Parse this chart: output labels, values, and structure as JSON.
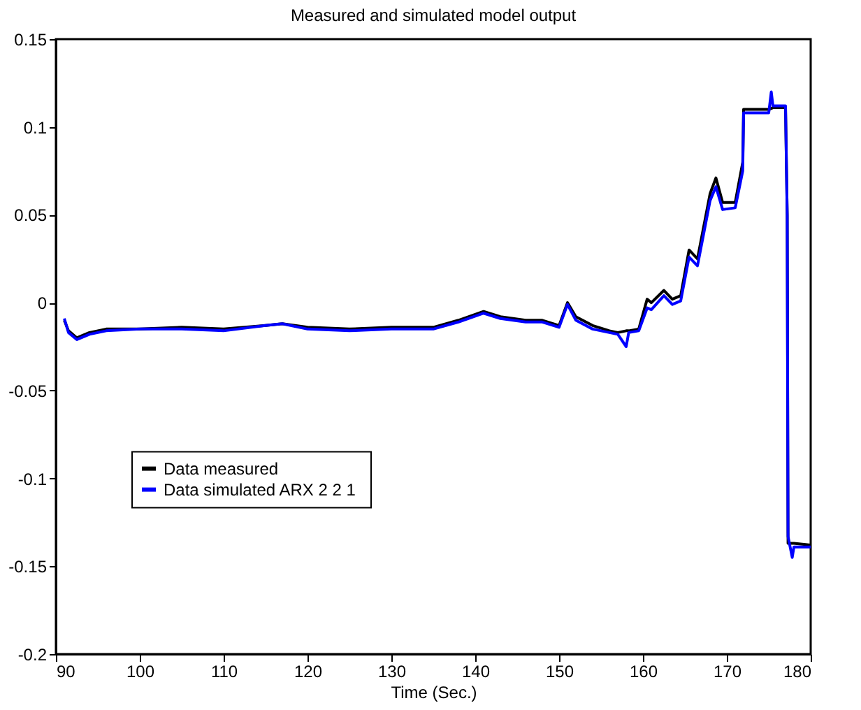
{
  "chart_data": {
    "type": "line",
    "title": "Measured and simulated model output",
    "xlabel": "Time (Sec.)",
    "xlim": [
      90,
      180
    ],
    "xticks": [
      90,
      100,
      110,
      120,
      130,
      140,
      150,
      160,
      170,
      180
    ],
    "ylim": [
      -0.2,
      0.15
    ],
    "yticks": [
      -0.2,
      -0.15,
      -0.1,
      -0.05,
      0,
      0.05,
      0.1,
      0.15
    ],
    "grid": false,
    "legend": "bottom left",
    "line_style": "solid",
    "marker": "none",
    "series": [
      {
        "name": "Data measured",
        "color": "#000000",
        "x": [
          91,
          91.5,
          92.5,
          94,
          96,
          100,
          105,
          110,
          115,
          117,
          120,
          125,
          130,
          135,
          138,
          141,
          143,
          146,
          148,
          150,
          151,
          152,
          154,
          156,
          157,
          158,
          158.3,
          159.5,
          160.5,
          161,
          162.5,
          163.5,
          164.5,
          165.5,
          166.5,
          168,
          168.7,
          169.5,
          171,
          171.9,
          172,
          175,
          175.5,
          177,
          177.2,
          177.3,
          178,
          180
        ],
        "values": [
          -0.01,
          -0.016,
          -0.02,
          -0.017,
          -0.015,
          -0.015,
          -0.014,
          -0.015,
          -0.013,
          -0.012,
          -0.014,
          -0.015,
          -0.014,
          -0.014,
          -0.01,
          -0.005,
          -0.008,
          -0.01,
          -0.01,
          -0.013,
          0,
          -0.008,
          -0.013,
          -0.016,
          -0.017,
          -0.016,
          -0.016,
          -0.015,
          0.002,
          0,
          0.007,
          0.002,
          0.004,
          0.03,
          0.025,
          0.062,
          0.071,
          0.057,
          0.057,
          0.08,
          0.11,
          0.11,
          0.111,
          0.111,
          0.05,
          -0.137,
          -0.137,
          -0.138
        ]
      },
      {
        "name": "Data simulated  ARX 2 2 1",
        "color": "#0000ff",
        "x": [
          91,
          91.5,
          92.5,
          94,
          96,
          100,
          105,
          110,
          115,
          117,
          120,
          125,
          130,
          135,
          138,
          141,
          143,
          146,
          148,
          150,
          151,
          152,
          154,
          156,
          157,
          158,
          158.3,
          159.5,
          160.5,
          161,
          162.5,
          163.5,
          164.5,
          165.5,
          166.5,
          168,
          168.7,
          169.5,
          171,
          171.9,
          172,
          175,
          175.3,
          175.5,
          177,
          177.2,
          177.3,
          177.8,
          178,
          180
        ],
        "values": [
          -0.009,
          -0.017,
          -0.021,
          -0.018,
          -0.016,
          -0.015,
          -0.015,
          -0.016,
          -0.013,
          -0.012,
          -0.015,
          -0.016,
          -0.015,
          -0.015,
          -0.011,
          -0.006,
          -0.009,
          -0.011,
          -0.011,
          -0.014,
          -0.001,
          -0.01,
          -0.015,
          -0.017,
          -0.018,
          -0.025,
          -0.017,
          -0.016,
          -0.003,
          -0.004,
          0.004,
          -0.001,
          0.001,
          0.026,
          0.021,
          0.058,
          0.066,
          0.053,
          0.054,
          0.075,
          0.108,
          0.108,
          0.12,
          0.112,
          0.112,
          0.05,
          -0.133,
          -0.145,
          -0.139,
          -0.139
        ]
      }
    ]
  }
}
